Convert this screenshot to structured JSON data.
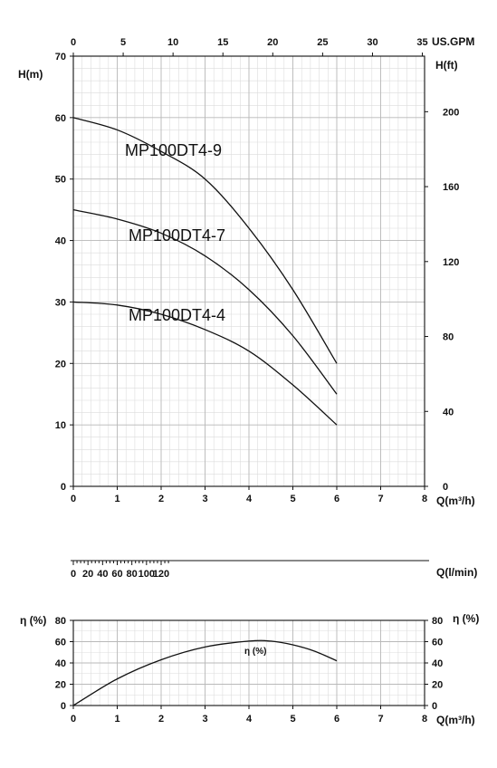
{
  "chart_data": [
    {
      "type": "line",
      "id": "head",
      "title": "",
      "xlabel": "Q(m³/h)",
      "ylabel": "H(m)",
      "secondary_x_label": "US.GPM",
      "secondary_y_label": "H(ft)",
      "xlim": [
        0,
        8
      ],
      "ylim": [
        0,
        70
      ],
      "x_ticks": [
        0,
        1,
        2,
        3,
        4,
        5,
        6,
        7,
        8
      ],
      "y_ticks": [
        0,
        10,
        20,
        30,
        40,
        50,
        60,
        70
      ],
      "top_ticks": [
        0,
        5,
        10,
        15,
        20,
        25,
        30,
        35
      ],
      "right_ticks": [
        0,
        40,
        80,
        120,
        160,
        200
      ],
      "grid": true,
      "series": [
        {
          "name": "MP100DT4-9",
          "x": [
            0,
            1,
            2,
            3,
            4,
            5,
            6
          ],
          "y": [
            60,
            58,
            54.5,
            50,
            42,
            32,
            20
          ]
        },
        {
          "name": "MP100DT4-7",
          "x": [
            0,
            1,
            2,
            3,
            4,
            5,
            6
          ],
          "y": [
            45,
            43.5,
            41.2,
            37.5,
            32,
            24.5,
            15
          ]
        },
        {
          "name": "MP100DT4-4",
          "x": [
            0,
            1,
            2,
            3,
            4,
            5,
            6
          ],
          "y": [
            30,
            29.5,
            28,
            25.5,
            22,
            16.5,
            10
          ]
        }
      ]
    },
    {
      "type": "axis",
      "id": "flow_lmin",
      "xlabel": "Q(l/min)",
      "ticks": [
        0,
        20,
        40,
        60,
        80,
        100,
        120
      ]
    },
    {
      "type": "line",
      "id": "efficiency",
      "xlabel": "Q(m³/h)",
      "ylabel": "η (%)",
      "secondary_y_label": "η (%)",
      "xlim": [
        0,
        8
      ],
      "ylim": [
        0,
        80
      ],
      "x_ticks": [
        0,
        1,
        2,
        3,
        4,
        5,
        6,
        7,
        8
      ],
      "y_ticks": [
        0,
        20,
        40,
        60,
        80
      ],
      "grid": true,
      "series": [
        {
          "name": "η (%)",
          "x": [
            0,
            1,
            2,
            3,
            4,
            4.5,
            5,
            5.5,
            6
          ],
          "y": [
            0,
            25,
            43,
            55,
            60.5,
            60.5,
            57,
            51,
            42
          ]
        }
      ]
    }
  ]
}
